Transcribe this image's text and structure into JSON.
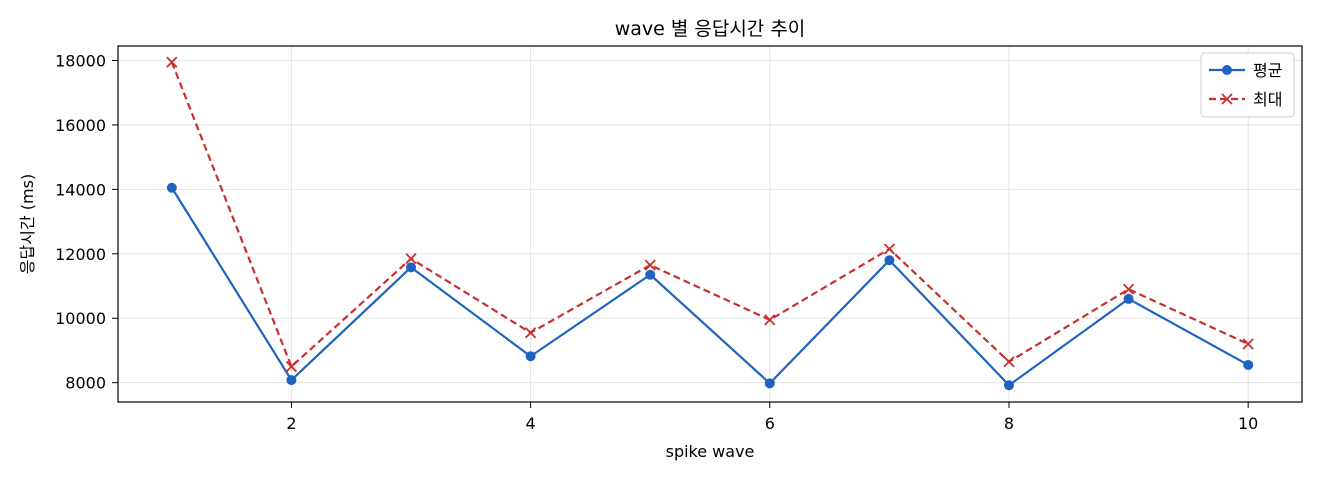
{
  "chart_data": {
    "type": "line",
    "title": "wave 별 응답시간 추이",
    "xlabel": "spike wave",
    "ylabel": "응답시간 (ms)",
    "x": [
      1,
      2,
      3,
      4,
      5,
      6,
      7,
      8,
      9,
      10
    ],
    "xlim": [
      0.55,
      10.45
    ],
    "ylim": [
      7400,
      18450
    ],
    "xticks": [
      2,
      4,
      6,
      8,
      10
    ],
    "yticks": [
      8000,
      10000,
      12000,
      14000,
      16000,
      18000
    ],
    "grid": true,
    "legend_position": "top-right",
    "series": [
      {
        "name": "평균",
        "color": "#1f63c0",
        "line_style": "solid",
        "marker": "circle",
        "values": [
          14050,
          8080,
          11580,
          8820,
          11350,
          7980,
          11800,
          7920,
          10600,
          8550
        ]
      },
      {
        "name": "최대",
        "color": "#c8302e",
        "line_style": "dashed",
        "marker": "x",
        "values": [
          17950,
          8500,
          11850,
          9550,
          11650,
          9950,
          12150,
          8650,
          10900,
          9200
        ]
      }
    ]
  }
}
